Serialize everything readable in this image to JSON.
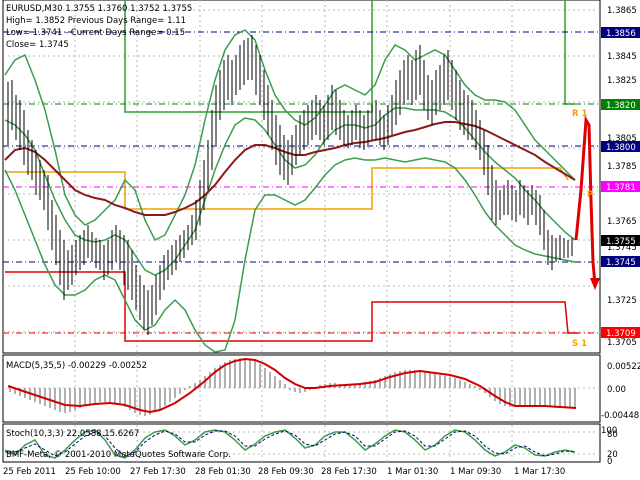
{
  "header": {
    "line1": "EURUSD,M30  1.3755 1.3760 1.3752 1.3755",
    "line2": "High= 1.3852   Previous Days Range= 1.11",
    "line3": "Low= 1.3741  - Current Days Range= 0.15",
    "line4": "Close= 1.3745"
  },
  "price_axis": {
    "ticks": [
      "1.3865",
      "1.3845",
      "1.3825",
      "1.3805",
      "1.3785",
      "1.3765",
      "1.3745",
      "1.3725",
      "1.3705"
    ],
    "markers": [
      {
        "label": "1.3856",
        "bg": "#000080",
        "fg": "#ffffff"
      },
      {
        "label": "1.3820",
        "bg": "#008000",
        "fg": "#ffffff"
      },
      {
        "label": "1.3800",
        "bg": "#000080",
        "fg": "#ffffff"
      },
      {
        "label": "1.3781",
        "bg": "#ff00ff",
        "fg": "#ffffff"
      },
      {
        "label": "1.3755",
        "bg": "#000000",
        "fg": "#ffffff"
      },
      {
        "label": "1.3745",
        "bg": "#000080",
        "fg": "#ffffff"
      },
      {
        "label": "1.3709",
        "bg": "#ff0000",
        "fg": "#ffffff"
      }
    ],
    "level_tags": [
      "R 1",
      "P",
      "S 1"
    ]
  },
  "macd": {
    "label": "MACD(5,35,5) -0.00229 -0.00252",
    "ticks": [
      "0.00522",
      "0.00",
      "-0.00448"
    ]
  },
  "stoch": {
    "label": "Stoch(10,3,3) 22.0588 15.6267",
    "ticks": [
      "100",
      "80",
      "20",
      "0"
    ]
  },
  "watermark": "BMF-Meta, © 2001-2010 MetaQuotes Software Corp.",
  "time_axis": [
    "25 Feb 2011",
    "25 Feb 10:00",
    "27 Feb 17:30",
    "28 Feb 01:30",
    "28 Feb 09:30",
    "28 Feb 17:30",
    "1 Mar 01:30",
    "1 Mar 09:30",
    "1 Mar 17:30"
  ],
  "colors": {
    "bollinger": "#3c9c4c",
    "ma": "#8b1a1a",
    "pivot": "#f0a000",
    "r1": "#2ca02c",
    "s1": "#e00000",
    "macd_signal": "#d00000",
    "histogram": "#b0b0b0",
    "forecast": "#e00000"
  }
}
